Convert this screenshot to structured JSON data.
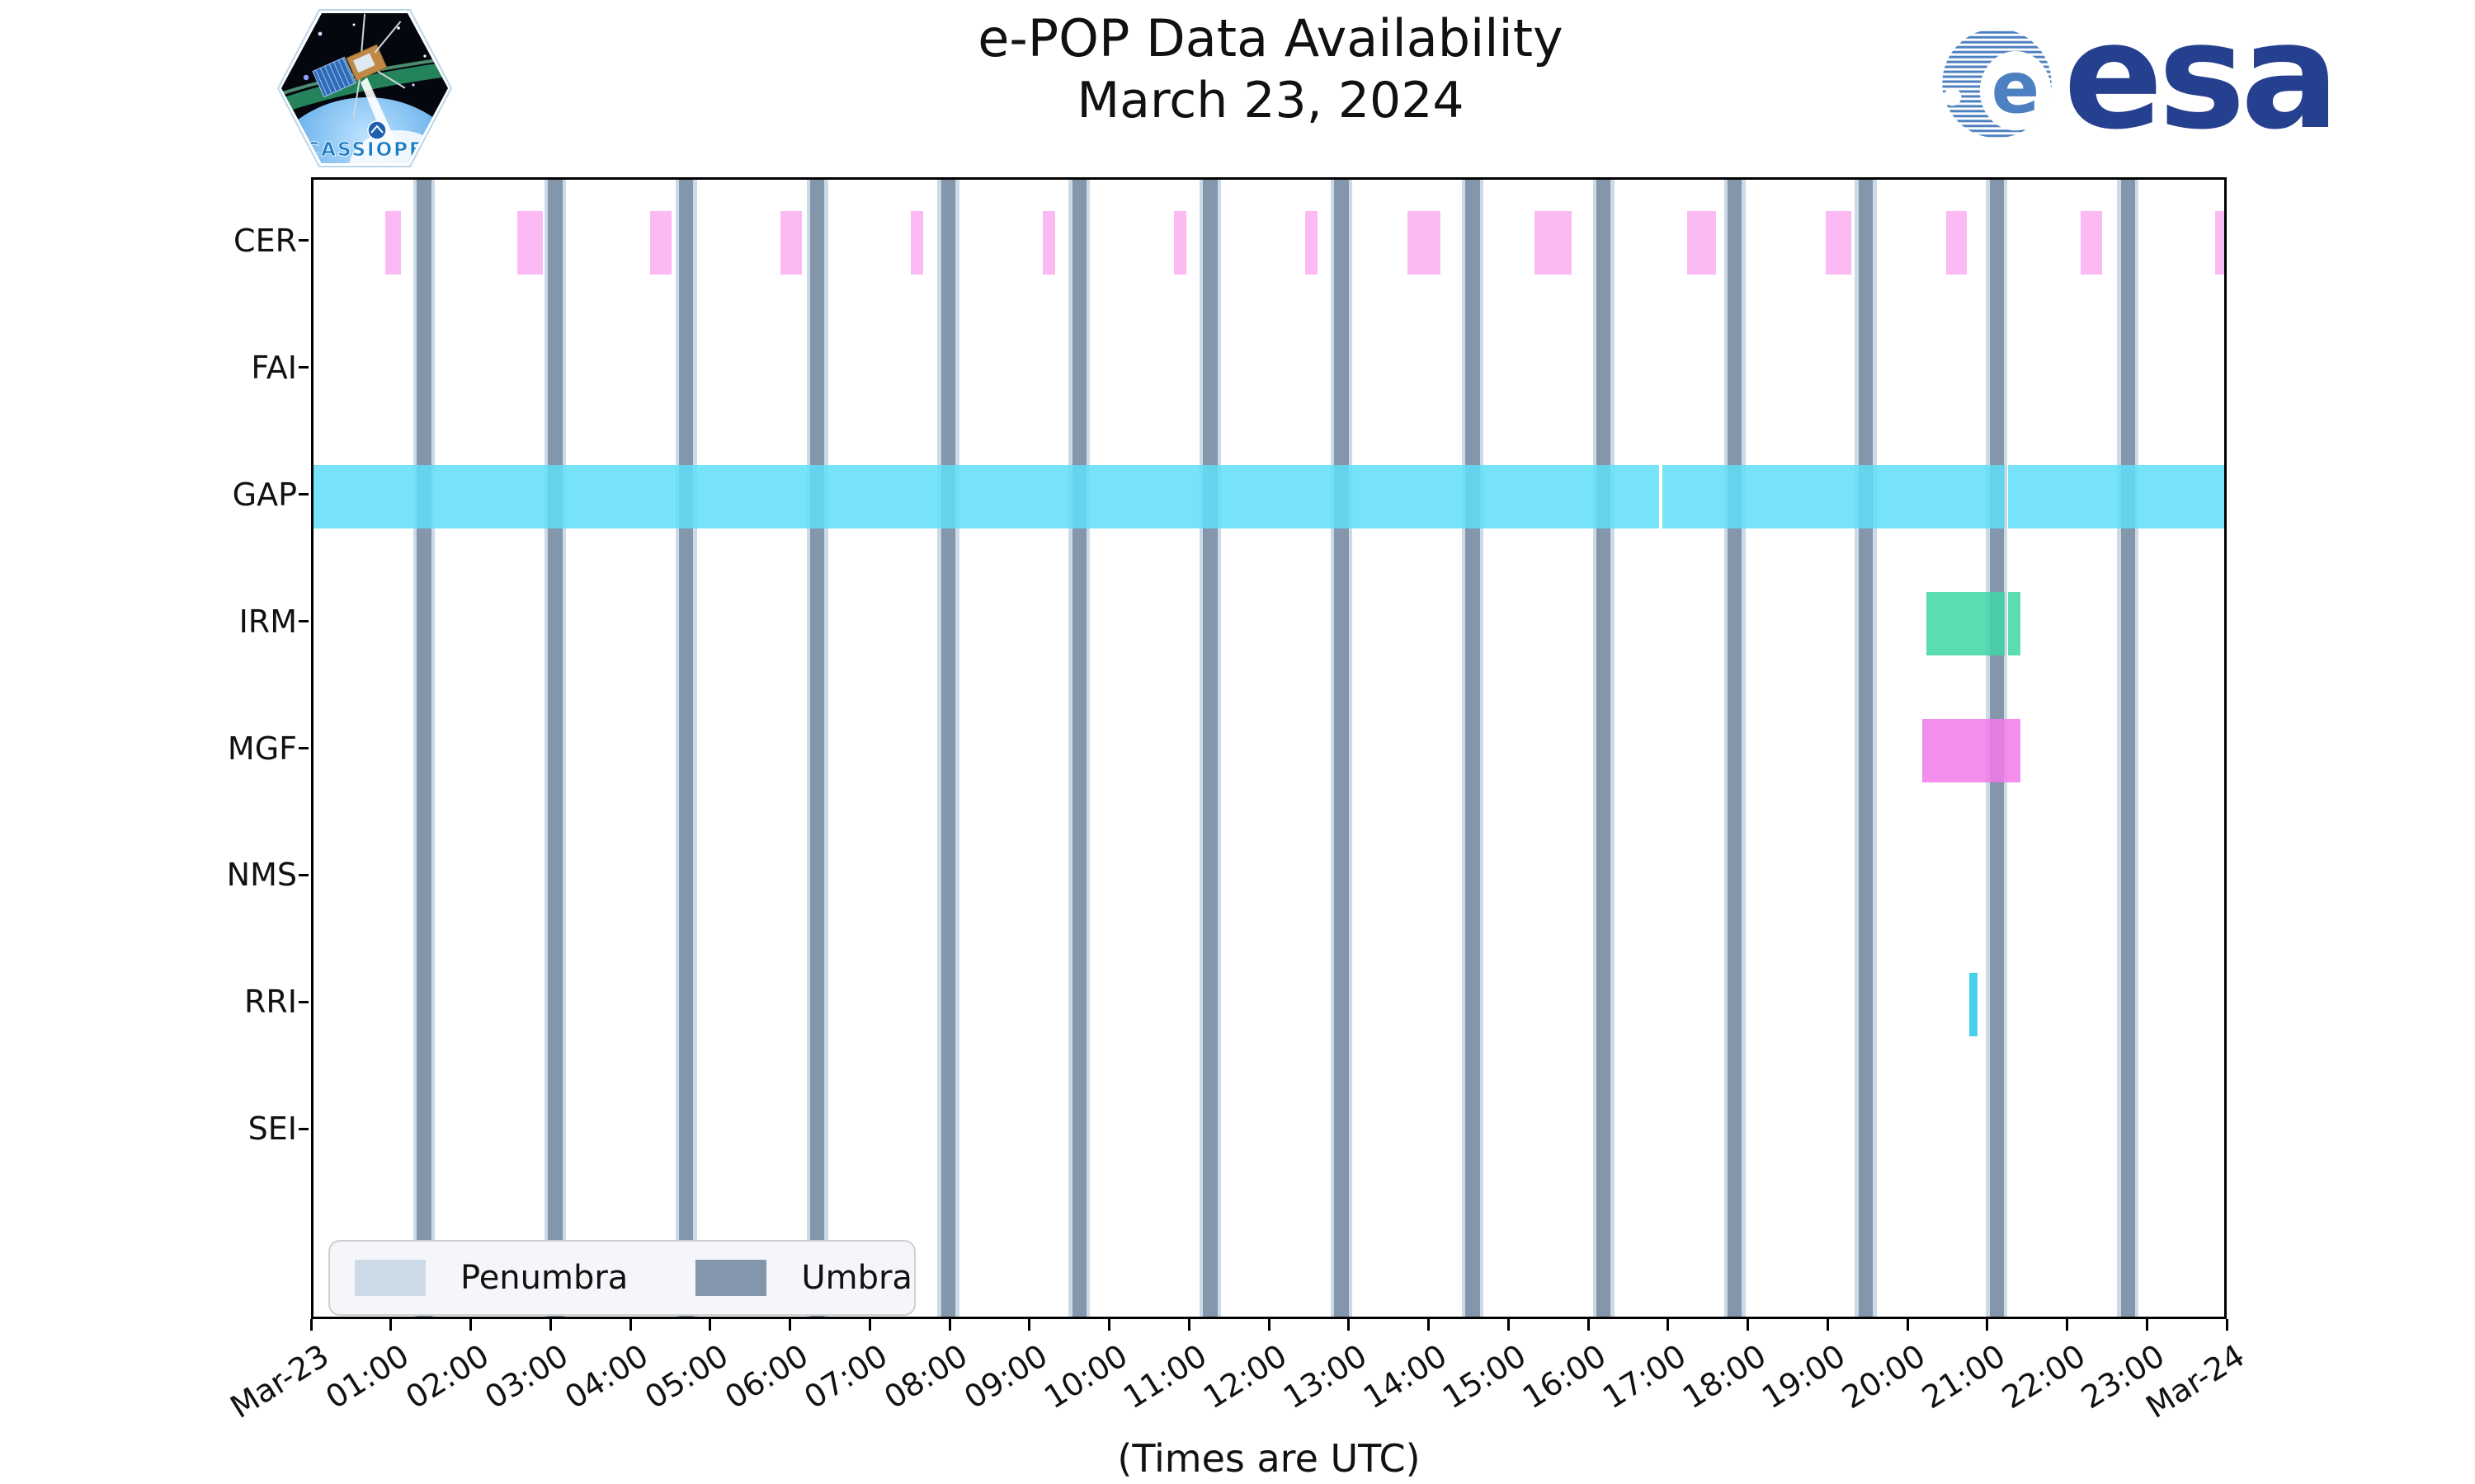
{
  "header": {
    "title": "e-POP Data Availability",
    "subtitle": "March 23, 2024",
    "esa_wordmark": "esa",
    "cassiope_patch_label": "CASSIOPE"
  },
  "chart_data": {
    "type": "gantt-timeline",
    "title": "e-POP Data Availability",
    "subtitle": "March 23, 2024",
    "xlabel": "(Times are UTC)",
    "x_range_hours": [
      0,
      24
    ],
    "x_tick_labels": [
      "Mar-23",
      "01:00",
      "02:00",
      "03:00",
      "04:00",
      "05:00",
      "06:00",
      "07:00",
      "08:00",
      "09:00",
      "10:00",
      "11:00",
      "12:00",
      "13:00",
      "14:00",
      "15:00",
      "16:00",
      "17:00",
      "18:00",
      "19:00",
      "20:00",
      "21:00",
      "22:00",
      "23:00",
      "Mar-24"
    ],
    "rows": [
      "CER",
      "FAI",
      "GAP",
      "IRM",
      "MGF",
      "NMS",
      "RRI",
      "SEI"
    ],
    "grid": false,
    "legend_position": "lower-left",
    "eclipse": {
      "umbra_centers_h": [
        1.385,
        3.027,
        4.669,
        6.311,
        7.953,
        9.595,
        11.237,
        12.879,
        14.521,
        16.163,
        17.805,
        19.447,
        21.089,
        22.731
      ],
      "umbra_width_h": 0.18,
      "penumbra_extra_h": 0.045,
      "umbra_color": "#8496ab",
      "penumbra_color": "#ccd9e6"
    },
    "series": [
      {
        "name": "CER",
        "color": "#fcaef2",
        "segments_h": [
          [
            0.9,
            1.1
          ],
          [
            2.55,
            2.87
          ],
          [
            4.22,
            4.49
          ],
          [
            5.85,
            6.12
          ],
          [
            7.48,
            7.64
          ],
          [
            9.14,
            9.29
          ],
          [
            10.78,
            10.94
          ],
          [
            12.42,
            12.58
          ],
          [
            13.71,
            14.12
          ],
          [
            15.3,
            15.76
          ],
          [
            17.21,
            17.57
          ],
          [
            18.95,
            19.27
          ],
          [
            20.45,
            20.71
          ],
          [
            22.14,
            22.41
          ],
          [
            23.82,
            24.0
          ]
        ]
      },
      {
        "name": "FAI",
        "color": "#fcaef2",
        "segments_h": []
      },
      {
        "name": "GAP",
        "color": "#5fdef7",
        "segments_h": [
          [
            0.0,
            16.855
          ],
          [
            16.9,
            21.19
          ],
          [
            21.23,
            24.0
          ]
        ]
      },
      {
        "name": "IRM",
        "color": "#3ed6a6",
        "segments_h": [
          [
            20.21,
            21.19
          ],
          [
            21.23,
            21.39
          ]
        ]
      },
      {
        "name": "MGF",
        "color": "#f17ae9",
        "segments_h": [
          [
            20.16,
            21.39
          ]
        ]
      },
      {
        "name": "NMS",
        "color": "#5fdef7",
        "segments_h": []
      },
      {
        "name": "RRI",
        "color": "#2cc8e8",
        "segments_h": [
          [
            20.74,
            20.85
          ]
        ]
      },
      {
        "name": "SEI",
        "color": "#5fdef7",
        "segments_h": []
      }
    ],
    "legend": [
      {
        "label": "Penumbra",
        "color": "#ccd9e6"
      },
      {
        "label": "Umbra",
        "color": "#8496ab"
      }
    ]
  }
}
